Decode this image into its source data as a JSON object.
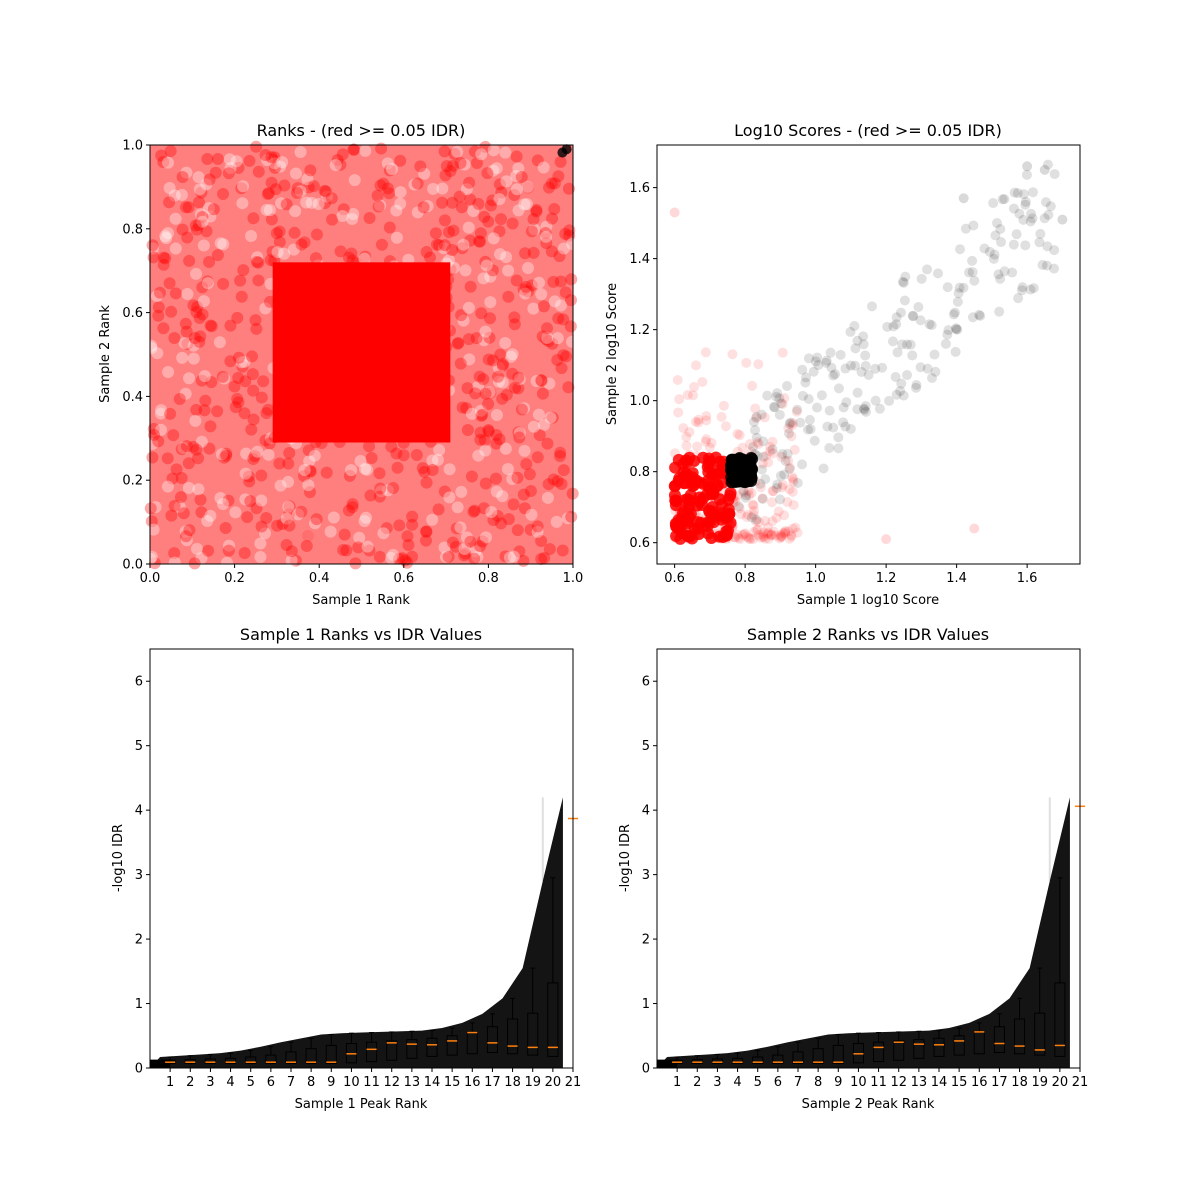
{
  "chart_data": [
    {
      "type": "scatter",
      "title": "Ranks - (red >= 0.05 IDR)",
      "xlabel": "Sample 1 Rank",
      "ylabel": "Sample 2 Rank",
      "xlim": [
        0,
        1
      ],
      "ylim": [
        0,
        1
      ],
      "xticks": [
        "0.0",
        "0.2",
        "0.4",
        "0.6",
        "0.8",
        "1.0"
      ],
      "yticks": [
        "0.0",
        "0.2",
        "0.4",
        "0.6",
        "0.8",
        "1.0"
      ],
      "colors": {
        "above_threshold": "#ff0000",
        "below_threshold": "#000000"
      },
      "dense_regions": [
        {
          "color": "#ff0000",
          "x": [
            0.29,
            0.71
          ],
          "y": [
            0.29,
            0.72
          ]
        }
      ],
      "highlight_points": [
        {
          "color": "#000000",
          "x": 0.975,
          "y": 0.982
        },
        {
          "color": "#000000",
          "x": 0.985,
          "y": 0.99
        }
      ],
      "grid": false,
      "legend": "none"
    },
    {
      "type": "scatter",
      "title": "Log10 Scores - (red >= 0.05 IDR)",
      "xlabel": "Sample 1 log10 Score",
      "ylabel": "Sample 2 log10 Score",
      "xlim": [
        0.55,
        1.75
      ],
      "ylim": [
        0.54,
        1.72
      ],
      "xticks": [
        "0.6",
        "0.8",
        "1.0",
        "1.2",
        "1.4",
        "1.6"
      ],
      "yticks": [
        "0.6",
        "0.8",
        "1.0",
        "1.2",
        "1.4",
        "1.6"
      ],
      "colors": {
        "above_threshold": "#ff0000",
        "below_threshold": "#000000"
      },
      "dense_regions": [
        {
          "color": "#ff0000",
          "x": [
            0.6,
            0.76
          ],
          "y": [
            0.61,
            0.84
          ]
        },
        {
          "color": "#000000",
          "x": [
            0.76,
            0.82
          ],
          "y": [
            0.77,
            0.84
          ]
        }
      ],
      "highlight_points": [
        {
          "color": "#ff0000",
          "x": 0.6,
          "y": 1.53
        },
        {
          "color": "#000000",
          "x": 1.7,
          "y": 1.51
        },
        {
          "color": "#000000",
          "x": 1.6,
          "y": 1.66
        },
        {
          "color": "#000000",
          "x": 1.65,
          "y": 1.65
        },
        {
          "color": "#000000",
          "x": 1.42,
          "y": 1.57
        },
        {
          "color": "#ff0000",
          "x": 1.45,
          "y": 0.64
        },
        {
          "color": "#ff0000",
          "x": 1.2,
          "y": 0.61
        }
      ],
      "grid": false,
      "legend": "none"
    },
    {
      "type": "box",
      "title": "Sample 1 Ranks vs IDR Values",
      "xlabel": "Sample 1 Peak Rank",
      "ylabel": "-log10 IDR",
      "xlim": [
        0,
        21
      ],
      "ylim": [
        0,
        6.5
      ],
      "categories": [
        "1",
        "2",
        "3",
        "4",
        "5",
        "6",
        "7",
        "8",
        "9",
        "10",
        "11",
        "12",
        "13",
        "14",
        "15",
        "16",
        "17",
        "18",
        "19",
        "20",
        "21"
      ],
      "yticks": [
        "0",
        "1",
        "2",
        "3",
        "4",
        "5",
        "6"
      ],
      "band_max": [
        0.17,
        0.19,
        0.21,
        0.23,
        0.27,
        0.33,
        0.4,
        0.46,
        0.52,
        0.54,
        0.55,
        0.56,
        0.57,
        0.58,
        0.62,
        0.7,
        0.84,
        1.08,
        1.55,
        2.9,
        4.2
      ],
      "medians": [
        0.09,
        0.09,
        0.09,
        0.09,
        0.09,
        0.09,
        0.09,
        0.09,
        0.09,
        0.22,
        0.29,
        0.39,
        0.37,
        0.36,
        0.42,
        0.55,
        0.39,
        0.34,
        0.32,
        0.32,
        3.87
      ],
      "box_q1": [
        0.07,
        0.07,
        0.07,
        0.07,
        0.07,
        0.07,
        0.07,
        0.07,
        0.07,
        0.08,
        0.1,
        0.12,
        0.15,
        0.18,
        0.2,
        0.22,
        0.24,
        0.22,
        0.2,
        0.18,
        3.87
      ],
      "box_q3": [
        0.12,
        0.13,
        0.14,
        0.15,
        0.17,
        0.2,
        0.25,
        0.3,
        0.35,
        0.38,
        0.4,
        0.42,
        0.44,
        0.46,
        0.5,
        0.56,
        0.64,
        0.76,
        0.85,
        1.32,
        3.87
      ],
      "whisker_high": [
        0.17,
        0.19,
        0.21,
        0.23,
        0.27,
        0.33,
        0.4,
        0.46,
        0.52,
        0.54,
        0.55,
        0.56,
        0.57,
        0.58,
        0.62,
        0.7,
        0.84,
        1.08,
        1.55,
        2.95,
        3.87
      ],
      "colors": {
        "points": "#000000",
        "median": "#ff7f0e",
        "box": "#000000"
      },
      "grid": false,
      "legend": "none"
    },
    {
      "type": "box",
      "title": "Sample 2 Ranks vs IDR Values",
      "xlabel": "Sample 2 Peak Rank",
      "ylabel": "-log10 IDR",
      "xlim": [
        0,
        21
      ],
      "ylim": [
        0,
        6.5
      ],
      "categories": [
        "1",
        "2",
        "3",
        "4",
        "5",
        "6",
        "7",
        "8",
        "9",
        "10",
        "11",
        "12",
        "13",
        "14",
        "15",
        "16",
        "17",
        "18",
        "19",
        "20",
        "21"
      ],
      "yticks": [
        "0",
        "1",
        "2",
        "3",
        "4",
        "5",
        "6"
      ],
      "band_max": [
        0.17,
        0.19,
        0.21,
        0.23,
        0.27,
        0.33,
        0.4,
        0.46,
        0.52,
        0.54,
        0.55,
        0.56,
        0.57,
        0.58,
        0.62,
        0.7,
        0.84,
        1.08,
        1.55,
        2.9,
        4.2
      ],
      "medians": [
        0.09,
        0.09,
        0.09,
        0.09,
        0.09,
        0.09,
        0.09,
        0.09,
        0.09,
        0.22,
        0.32,
        0.4,
        0.37,
        0.36,
        0.42,
        0.56,
        0.38,
        0.34,
        0.28,
        0.35,
        4.06
      ],
      "box_q1": [
        0.07,
        0.07,
        0.07,
        0.07,
        0.07,
        0.07,
        0.07,
        0.07,
        0.07,
        0.08,
        0.1,
        0.12,
        0.15,
        0.18,
        0.2,
        0.22,
        0.24,
        0.22,
        0.2,
        0.18,
        4.06
      ],
      "box_q3": [
        0.12,
        0.13,
        0.14,
        0.15,
        0.17,
        0.2,
        0.25,
        0.3,
        0.35,
        0.38,
        0.4,
        0.42,
        0.44,
        0.46,
        0.5,
        0.56,
        0.64,
        0.76,
        0.85,
        1.32,
        4.06
      ],
      "whisker_high": [
        0.17,
        0.19,
        0.21,
        0.23,
        0.27,
        0.33,
        0.4,
        0.46,
        0.52,
        0.54,
        0.55,
        0.56,
        0.57,
        0.58,
        0.62,
        0.7,
        0.84,
        1.08,
        1.55,
        2.95,
        4.06
      ],
      "colors": {
        "points": "#000000",
        "median": "#ff7f0e",
        "box": "#000000"
      },
      "grid": false,
      "legend": "none"
    }
  ]
}
